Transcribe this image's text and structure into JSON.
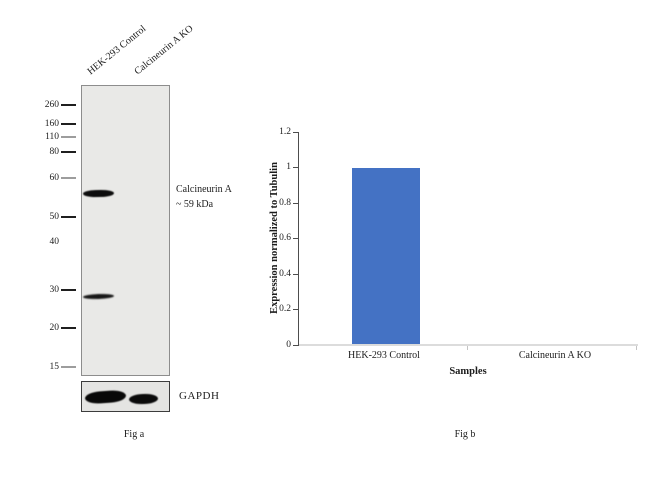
{
  "figure": {
    "fig_a_caption": "Fig a",
    "fig_b_caption": "Fig b"
  },
  "western_blot": {
    "lane_labels": [
      "HEK-293 Control",
      "Calcineurin A KO"
    ],
    "mw_markers": [
      "260",
      "160",
      "110",
      "80",
      "60",
      "50",
      "40",
      "30",
      "20",
      "15"
    ],
    "target_annotation": {
      "line1": "Calcineurin A",
      "line2": "~ 59 kDa"
    },
    "loading_control_label": "GAPDH"
  },
  "chart_data": {
    "type": "bar",
    "title": "",
    "categories": [
      "HEK-293 Control",
      "Calcineurin A KO"
    ],
    "values": [
      1,
      0
    ],
    "xlabel": "Samples",
    "ylabel": "Expression normalized to Tubulin",
    "ylim": [
      0,
      1.2
    ],
    "yticks": [
      0,
      0.2,
      0.4,
      0.6,
      0.8,
      1,
      1.2
    ],
    "ytick_labels_top_to_bottom": [
      "1.2",
      "1",
      "0.8",
      "0.6",
      "0.4",
      "0.2",
      "0"
    ],
    "bar_color": "#4472C4",
    "grid": false,
    "legend": "none"
  }
}
